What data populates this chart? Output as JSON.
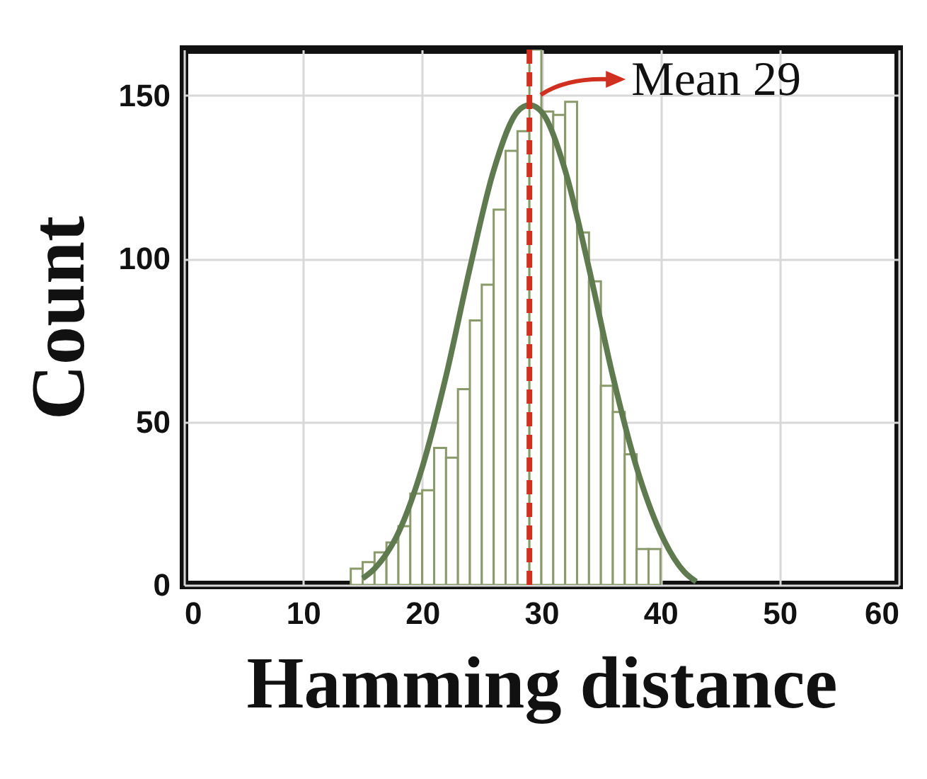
{
  "chart_data": {
    "type": "histogram",
    "xlabel": "Hamming distance",
    "ylabel": "Count",
    "bins": [
      14,
      15,
      16,
      17,
      18,
      19,
      20,
      21,
      22,
      23,
      24,
      25,
      26,
      27,
      28,
      29,
      30,
      31,
      32,
      33,
      34,
      35,
      36,
      37,
      38,
      39,
      40
    ],
    "values": [
      5,
      7,
      10,
      13,
      18,
      28,
      29,
      42,
      39,
      60,
      81,
      92,
      115,
      133,
      139,
      164,
      145,
      144,
      148,
      108,
      93,
      61,
      53,
      40,
      11,
      11
    ],
    "color": "#8a9a6a",
    "series": [
      {
        "type": "line",
        "color": "#5f7a4f",
        "x": [
          15,
          16,
          18,
          20,
          22,
          24,
          26,
          28,
          29,
          30,
          32,
          34,
          36,
          38,
          40,
          42,
          43
        ],
        "values": [
          2,
          5,
          16,
          36,
          64,
          97,
          127,
          145,
          147,
          145,
          127,
          97,
          64,
          36,
          16,
          4,
          1
        ]
      }
    ],
    "ref_lines": [
      {
        "axis": "x",
        "value": 29,
        "label": "Mean 29",
        "color": "#d03020",
        "line_style": "dashed"
      }
    ],
    "xlim": [
      0,
      60
    ],
    "xticks": [
      0,
      10,
      20,
      30,
      40,
      50,
      60
    ],
    "ylim": [
      0,
      164
    ],
    "yticks": [
      0,
      50,
      100,
      150
    ],
    "grid": true
  }
}
